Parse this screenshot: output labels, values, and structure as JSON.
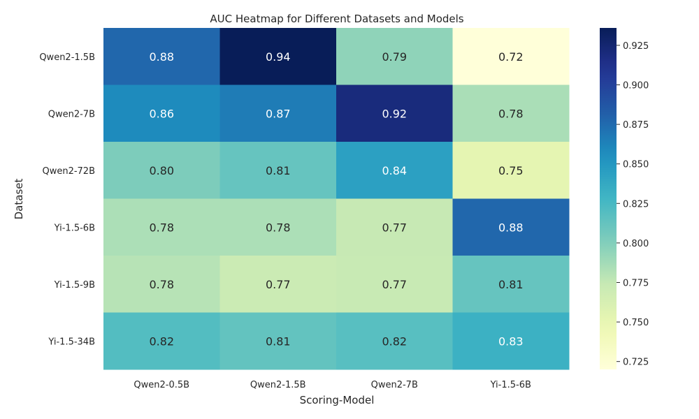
{
  "chart_data": {
    "type": "heatmap",
    "title": "AUC Heatmap for Different Datasets and Models",
    "xlabel": "Scoring-Model",
    "ylabel": "Dataset",
    "x_categories": [
      "Qwen2-0.5B",
      "Qwen2-1.5B",
      "Qwen2-7B",
      "Yi-1.5-6B"
    ],
    "y_categories": [
      "Qwen2-1.5B",
      "Qwen2-7B",
      "Qwen2-72B",
      "Yi-1.5-6B",
      "Yi-1.5-9B",
      "Yi-1.5-34B"
    ],
    "values": [
      [
        0.877,
        0.936,
        0.795,
        0.72
      ],
      [
        0.858,
        0.866,
        0.92,
        0.785
      ],
      [
        0.802,
        0.812,
        0.844,
        0.753
      ],
      [
        0.784,
        0.784,
        0.774,
        0.877
      ],
      [
        0.78,
        0.771,
        0.773,
        0.812
      ],
      [
        0.82,
        0.813,
        0.818,
        0.832
      ]
    ],
    "value_labels": [
      [
        "0.88",
        "0.94",
        "0.79",
        "0.72"
      ],
      [
        "0.86",
        "0.87",
        "0.92",
        "0.78"
      ],
      [
        "0.80",
        "0.81",
        "0.84",
        "0.75"
      ],
      [
        "0.78",
        "0.78",
        "0.77",
        "0.88"
      ],
      [
        "0.78",
        "0.77",
        "0.77",
        "0.81"
      ],
      [
        "0.82",
        "0.81",
        "0.82",
        "0.83"
      ]
    ],
    "colormap": "YlGnBu",
    "vmin": 0.72,
    "vmax": 0.936,
    "colorbar_ticks": [
      "0.725",
      "0.750",
      "0.775",
      "0.800",
      "0.825",
      "0.850",
      "0.875",
      "0.900",
      "0.925"
    ],
    "grid": false,
    "legend": "colorbar-right"
  }
}
